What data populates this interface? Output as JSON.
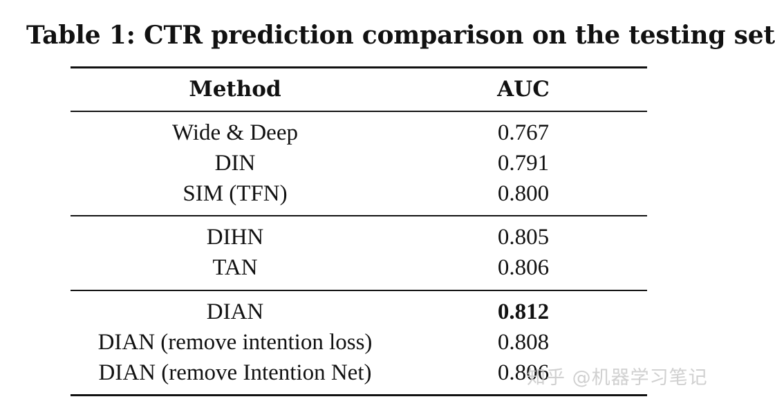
{
  "caption": "Table 1: CTR prediction comparison on the testing set",
  "table": {
    "headers": {
      "method": "Method",
      "auc": "AUC"
    },
    "groups": [
      [
        {
          "method": "Wide & Deep",
          "auc": "0.767",
          "bold": false
        },
        {
          "method": "DIN",
          "auc": "0.791",
          "bold": false
        },
        {
          "method": "SIM (TFN)",
          "auc": "0.800",
          "bold": false
        }
      ],
      [
        {
          "method": "DIHN",
          "auc": "0.805",
          "bold": false
        },
        {
          "method": "TAN",
          "auc": "0.806",
          "bold": false
        }
      ],
      [
        {
          "method": "DIAN",
          "auc": "0.812",
          "bold": true
        },
        {
          "method": "DIAN (remove intention loss)",
          "auc": "0.808",
          "bold": false
        },
        {
          "method": "DIAN (remove Intention Net)",
          "auc": "0.806",
          "bold": false
        }
      ]
    ]
  },
  "watermark": "知乎 @机器学习笔记"
}
